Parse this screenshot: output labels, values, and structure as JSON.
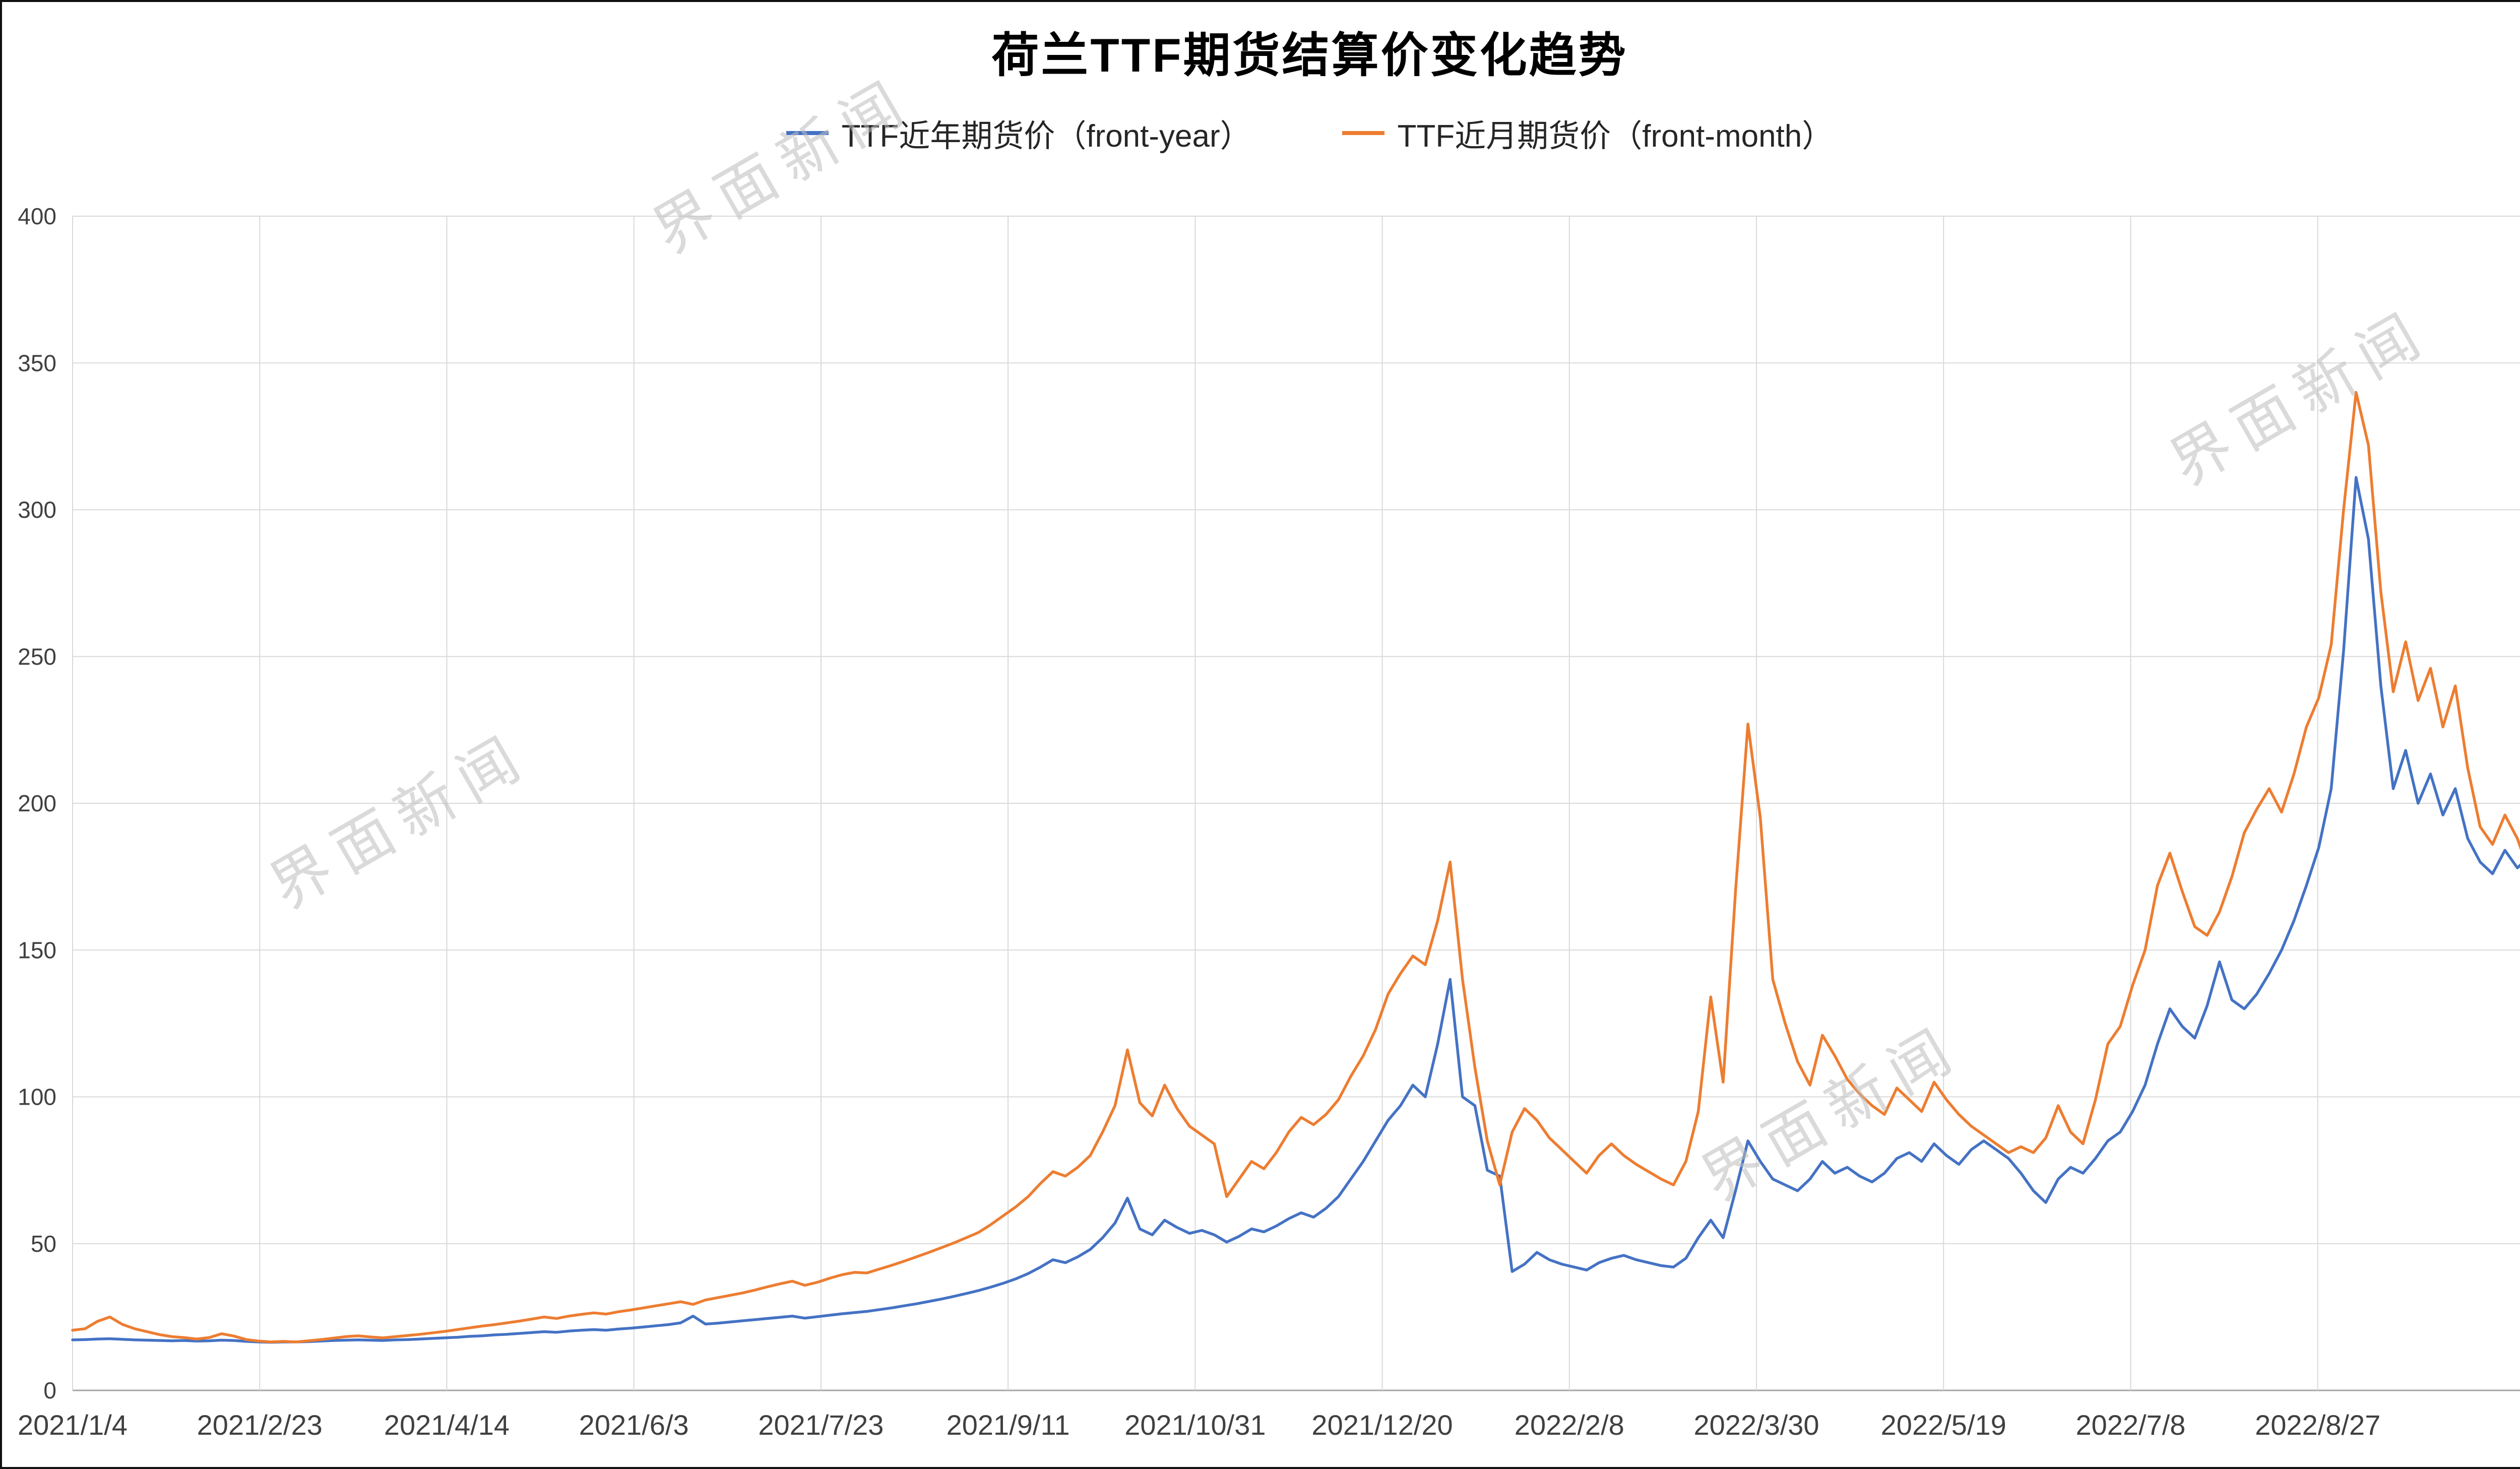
{
  "title": "荷兰TTF期货结算价变化趋势",
  "watermark": {
    "text": "界面新闻"
  },
  "legend": [
    {
      "label": "TTF近年期货价（front-year）",
      "color": "#4472c4"
    },
    {
      "label": "TTF近月期货价（front-month）",
      "color": "#ed7d31"
    }
  ],
  "chart_data": {
    "type": "line",
    "title": "荷兰TTF期货结算价变化趋势",
    "xlabel": "",
    "ylabel": "",
    "ylim": [
      0,
      400
    ],
    "y_tick_step": 50,
    "grid": true,
    "legend_position": "top",
    "x_tick_labels": [
      "2021/1/4",
      "2021/2/23",
      "2021/4/14",
      "2021/6/3",
      "2021/7/23",
      "2021/9/11",
      "2021/10/31",
      "2021/12/20",
      "2022/2/8",
      "2022/3/30",
      "2022/5/19",
      "2022/7/8",
      "2022/8/27"
    ],
    "x_tick_fraction_step": 0.07576,
    "series": [
      {
        "id": "front-year",
        "name": "TTF近年期货价（front-year）",
        "color": "#4472c4",
        "values": [
          17.2,
          17.3,
          17.5,
          17.6,
          17.4,
          17.2,
          17.1,
          17,
          16.9,
          17,
          16.8,
          16.9,
          17.1,
          17,
          16.7,
          16.5,
          16.4,
          16.5,
          16.5,
          16.6,
          16.8,
          17,
          17.1,
          17.2,
          17.1,
          17,
          17.2,
          17.3,
          17.5,
          17.7,
          17.9,
          18.1,
          18.4,
          18.6,
          18.9,
          19.1,
          19.4,
          19.7,
          20,
          19.8,
          20.2,
          20.5,
          20.7,
          20.5,
          20.9,
          21.2,
          21.6,
          22,
          22.4,
          23,
          25.3,
          22.6,
          22.9,
          23.3,
          23.7,
          24.1,
          24.5,
          24.9,
          25.3,
          24.6,
          25.1,
          25.6,
          26.1,
          26.5,
          26.9,
          27.5,
          28.1,
          28.8,
          29.5,
          30.3,
          31.1,
          32,
          33,
          34,
          35.2,
          36.5,
          38,
          39.8,
          42,
          44.5,
          43.5,
          45.5,
          48,
          52,
          57,
          65.5,
          55,
          53,
          58,
          55.5,
          53.5,
          54.5,
          53,
          50.5,
          52.5,
          55,
          54,
          56,
          58.5,
          60.5,
          59,
          62,
          66,
          72,
          78,
          85,
          92,
          97,
          104,
          100,
          118,
          140,
          100,
          97,
          75,
          73,
          40.5,
          43,
          47,
          44.5,
          43,
          42,
          41,
          43.5,
          45,
          46,
          44.5,
          43.5,
          42.5,
          42,
          45,
          52,
          58,
          52,
          68,
          85,
          78,
          72,
          70,
          68,
          72,
          78,
          74,
          76,
          73,
          71,
          74,
          79,
          81,
          78,
          84,
          80,
          77,
          82,
          85,
          82,
          79,
          74,
          68,
          64,
          72,
          76,
          74,
          79,
          85,
          88,
          95,
          104,
          118,
          130,
          124,
          120,
          131,
          146,
          133,
          130,
          135,
          142,
          150,
          160,
          172,
          185,
          205,
          252,
          311,
          290,
          240,
          205,
          218,
          200,
          210,
          196,
          205,
          188,
          180,
          176,
          184,
          178,
          182,
          190
        ]
      },
      {
        "id": "front-month",
        "name": "TTF近月期货价（front-month）",
        "color": "#ed7d31",
        "values": [
          20.5,
          21,
          23.5,
          25,
          22.5,
          21,
          20,
          19,
          18.3,
          18,
          17.5,
          18,
          19.3,
          18.5,
          17.3,
          16.8,
          16.5,
          16.7,
          16.5,
          16.9,
          17.3,
          17.8,
          18.3,
          18.6,
          18.2,
          17.9,
          18.3,
          18.7,
          19.1,
          19.6,
          20.1,
          20.7,
          21.3,
          21.9,
          22.4,
          23,
          23.6,
          24.3,
          25,
          24.5,
          25.3,
          25.9,
          26.4,
          26,
          26.8,
          27.4,
          28.1,
          28.8,
          29.5,
          30.2,
          29.3,
          30.8,
          31.6,
          32.4,
          33.2,
          34.2,
          35.3,
          36.3,
          37.2,
          35.8,
          36.8,
          38.2,
          39.4,
          40.2,
          40,
          41.3,
          42.6,
          44,
          45.5,
          47,
          48.6,
          50.2,
          52,
          53.8,
          56.5,
          59.5,
          62.5,
          66,
          70.5,
          74.5,
          73,
          76,
          80,
          88,
          97,
          116,
          98,
          93.5,
          104,
          96,
          90,
          87,
          84,
          66,
          72,
          78,
          75.5,
          81,
          88,
          93,
          90.5,
          94,
          99,
          107,
          114,
          123,
          135,
          142,
          148,
          145,
          160,
          180,
          140,
          110,
          85,
          70,
          88,
          96,
          92,
          86,
          82,
          78,
          74,
          80,
          84,
          80,
          77,
          74.5,
          72,
          70,
          78,
          95,
          134,
          105,
          170,
          227,
          195,
          140,
          125,
          112,
          104,
          121,
          114,
          106,
          101,
          97,
          94,
          103,
          99,
          95,
          105,
          99,
          94,
          90,
          87,
          84,
          81,
          83,
          81,
          86,
          97,
          88,
          84,
          99,
          118,
          124,
          138,
          150,
          172,
          183,
          170,
          158,
          155,
          163,
          175,
          190,
          198,
          205,
          197,
          210,
          226,
          236,
          254,
          300,
          340,
          322,
          272,
          238,
          255,
          235,
          246,
          226,
          240,
          212,
          192,
          186,
          196,
          188,
          176,
          174
        ]
      }
    ]
  }
}
